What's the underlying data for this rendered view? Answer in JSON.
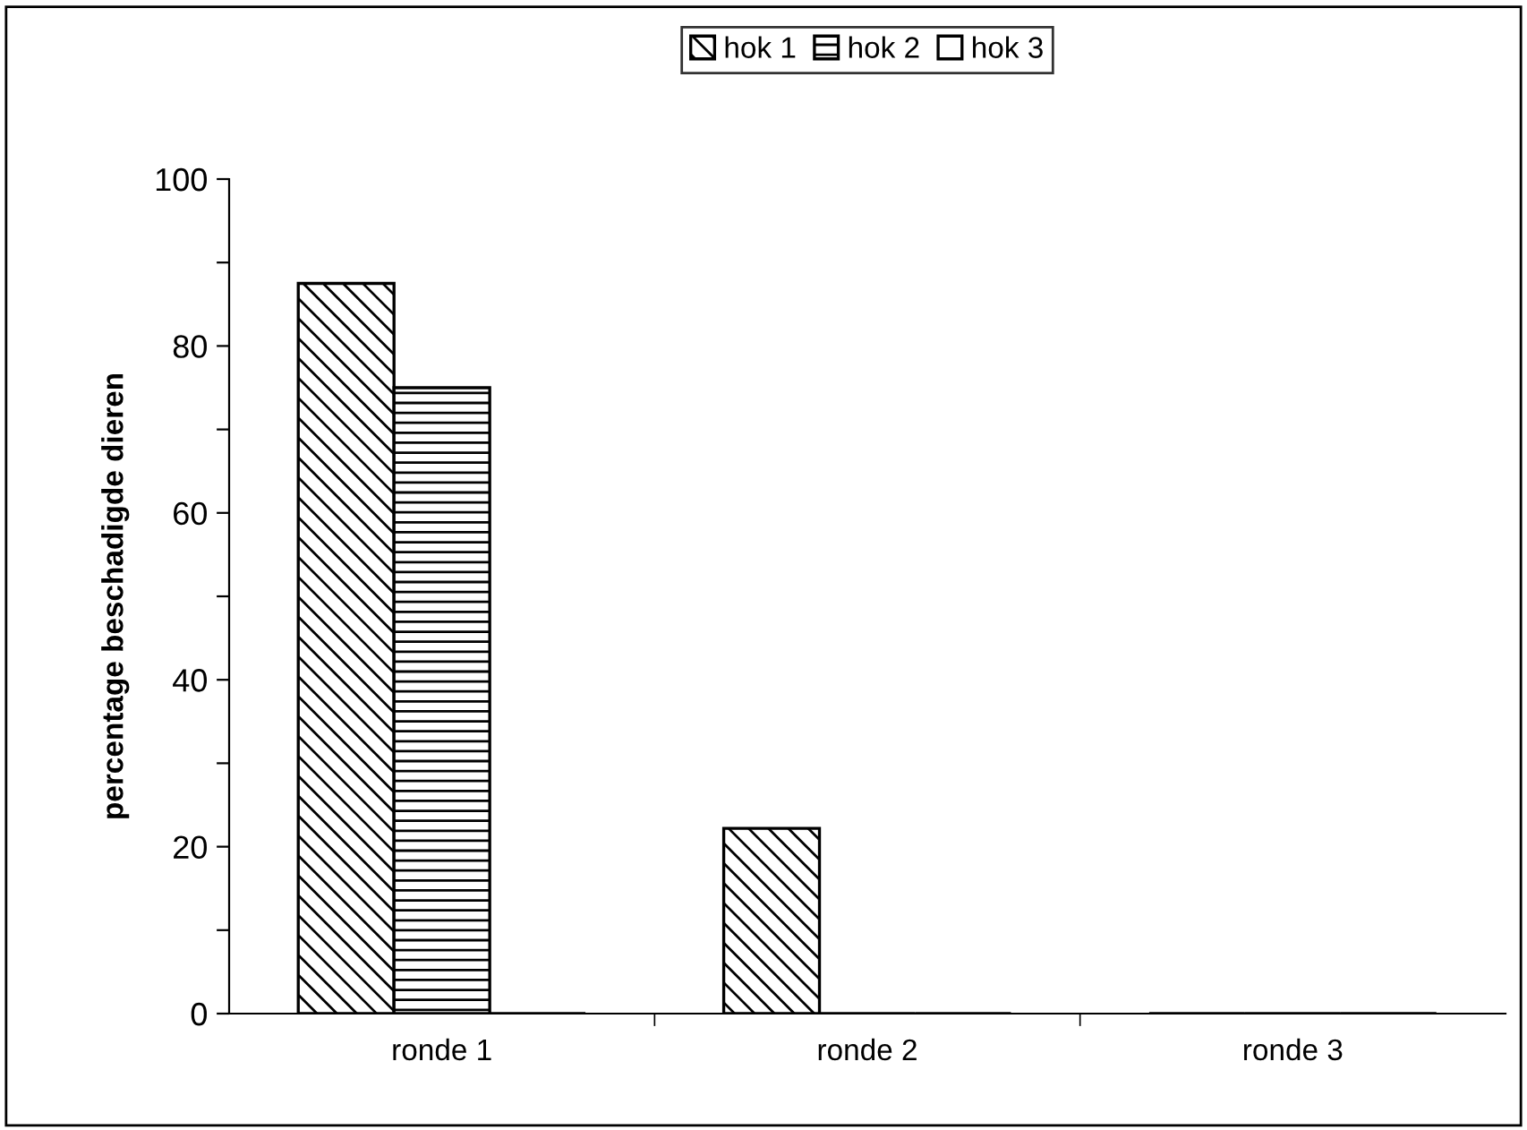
{
  "chart_data": {
    "type": "bar",
    "ylabel": "percentage beschadigde dieren",
    "categories": [
      "ronde 1",
      "ronde 2",
      "ronde 3"
    ],
    "series": [
      {
        "name": "hok 1",
        "color": "#000000",
        "values": [
          87.5,
          22.2,
          0
        ]
      },
      {
        "name": "hok 2",
        "color": "#000000",
        "values": [
          75,
          0,
          0
        ]
      },
      {
        "name": "hok 3",
        "color": "#000000",
        "values": [
          0,
          0,
          0
        ]
      }
    ],
    "ylim": [
      0,
      100
    ],
    "yticks": [
      0,
      {
        "value": 10,
        "label": null
      },
      20,
      {
        "value": 30,
        "label": null
      },
      40,
      {
        "value": 50,
        "label": null
      },
      60,
      {
        "value": 70,
        "label": null
      },
      80,
      {
        "value": 90,
        "label": null
      },
      100
    ],
    "grid": false,
    "legend": "top"
  }
}
